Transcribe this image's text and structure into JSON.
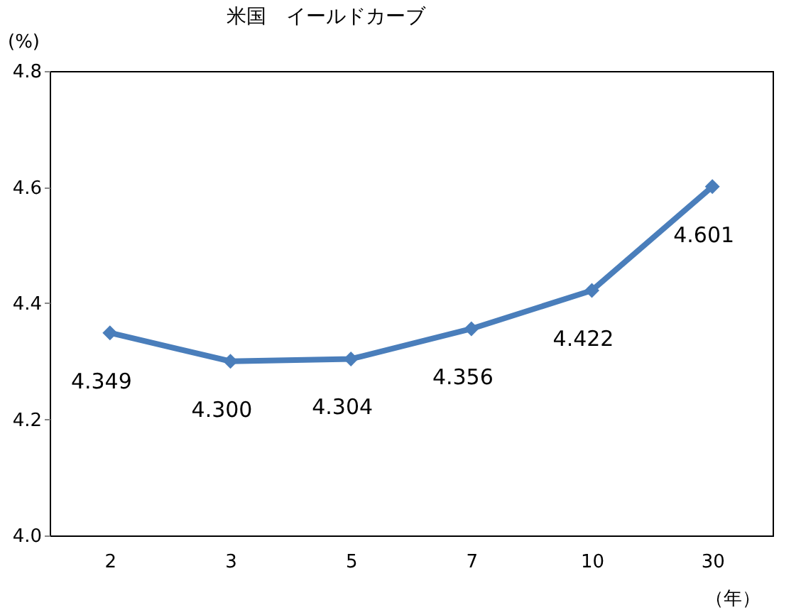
{
  "chart_data": {
    "type": "line",
    "title": "米国　イールドカーブ",
    "ylabel": "(%)",
    "xlabel": "（年）",
    "categories": [
      "2",
      "3",
      "5",
      "7",
      "10",
      "30"
    ],
    "series": [
      {
        "color": "#4a7ebb",
        "values": [
          4.349,
          4.3,
          4.304,
          4.356,
          4.422,
          4.601
        ],
        "value_labels": [
          "4.349",
          "4.300",
          "4.304",
          "4.356",
          "4.422",
          "4.601"
        ]
      }
    ],
    "ylim": [
      4.0,
      4.8
    ],
    "yticks": [
      {
        "value": 4.0,
        "label": "4.0"
      },
      4.2,
      4.4,
      4.6,
      4.8
    ],
    "marker": "diamond",
    "line_style": "solid",
    "grid": false
  }
}
